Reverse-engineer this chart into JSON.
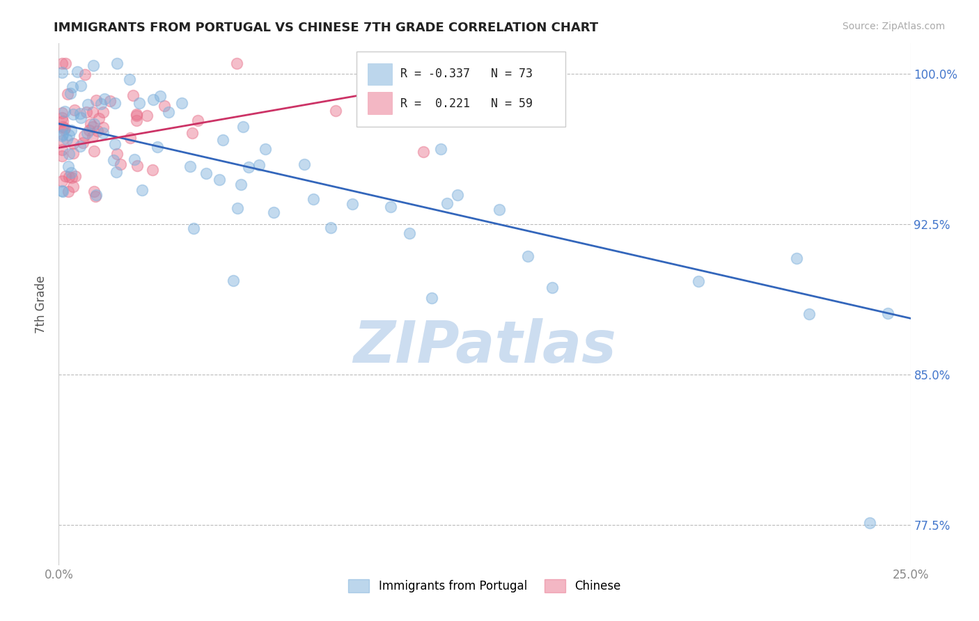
{
  "title": "IMMIGRANTS FROM PORTUGAL VS CHINESE 7TH GRADE CORRELATION CHART",
  "source_text": "Source: ZipAtlas.com",
  "ylabel": "7th Grade",
  "xlim": [
    0.0,
    0.25
  ],
  "ylim": [
    0.755,
    1.015
  ],
  "ytick_values": [
    1.0,
    0.925,
    0.85,
    0.775
  ],
  "ytick_labels": [
    "100.0%",
    "92.5%",
    "85.0%",
    "77.5%"
  ],
  "xtick_values": [
    0.0,
    0.25
  ],
  "xtick_labels": [
    "0.0%",
    "25.0%"
  ],
  "grid_color": "#bbbbbb",
  "background_color": "#ffffff",
  "blue_color": "#7aaedb",
  "pink_color": "#e8708a",
  "blue_R": -0.337,
  "blue_N": 73,
  "pink_R": 0.221,
  "pink_N": 59,
  "watermark": "ZIPatlas",
  "watermark_color": "#ccddf0",
  "legend_label_blue": "Immigrants from Portugal",
  "legend_label_pink": "Chinese",
  "blue_line_x0": 0.0,
  "blue_line_x1": 0.25,
  "blue_line_y0": 0.975,
  "blue_line_y1": 0.878,
  "pink_line_x0": 0.0,
  "pink_line_x1": 0.135,
  "pink_line_y0": 0.963,
  "pink_line_y1": 1.003,
  "blue_color_line": "#3366bb",
  "pink_color_line": "#cc3366",
  "tick_color_right": "#4477cc",
  "tick_color_bottom": "#888888"
}
